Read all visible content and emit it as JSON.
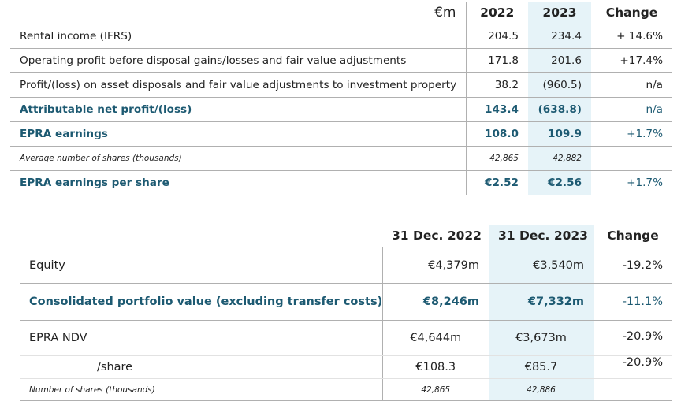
{
  "table1": {
    "header": {
      "unit": "€m",
      "y2022": "2022",
      "y2023": "2023",
      "change": "Change"
    },
    "rows": [
      {
        "label": "Rental income (IFRS)",
        "v2022": "204.5",
        "v2023": "234.4",
        "change": "+ 14.6%"
      },
      {
        "label": "Operating profit before disposal gains/losses and fair value adjustments",
        "v2022": "171.8",
        "v2023": "201.6",
        "change": "+17.4%"
      },
      {
        "label": "Profit/(loss) on asset disposals and fair value adjustments to investment property",
        "v2022": "38.2",
        "v2023": "(960.5)",
        "change": "n/a"
      },
      {
        "label": "Attributable net profit/(loss)",
        "v2022": "143.4",
        "v2023": "(638.8)",
        "change": "n/a"
      },
      {
        "label": "EPRA earnings",
        "v2022": "108.0",
        "v2023": "109.9",
        "change": "+1.7%"
      },
      {
        "label": "Average number of shares (thousands)",
        "v2022": "42,865",
        "v2023": "42,882",
        "change": ""
      },
      {
        "label": "EPRA earnings per share",
        "v2022": "€2.52",
        "v2023": "€2.56",
        "change": "+1.7%"
      }
    ]
  },
  "table2": {
    "header": {
      "label": "",
      "d2022": "31 Dec. 2022",
      "d2023": "31 Dec. 2023",
      "change": "Change"
    },
    "rows": [
      {
        "label": "Equity",
        "v2022": "€4,379m",
        "v2023": "€3,540m",
        "change": "-19.2%"
      },
      {
        "label": "Consolidated portfolio value (excluding transfer costs)",
        "v2022": "€8,246m",
        "v2023": "€7,332m",
        "change": "-11.1%"
      },
      {
        "label": "EPRA NDV",
        "v2022": "€4,644m",
        "v2023": "€3,673m",
        "change": "-20.9%"
      },
      {
        "label": "/share",
        "v2022": "€108.3",
        "v2023": "€85.7",
        "change": "-20.9%"
      },
      {
        "label": "Number of shares (thousands)",
        "v2022": "42,865",
        "v2023": "42,886",
        "change": ""
      }
    ]
  }
}
